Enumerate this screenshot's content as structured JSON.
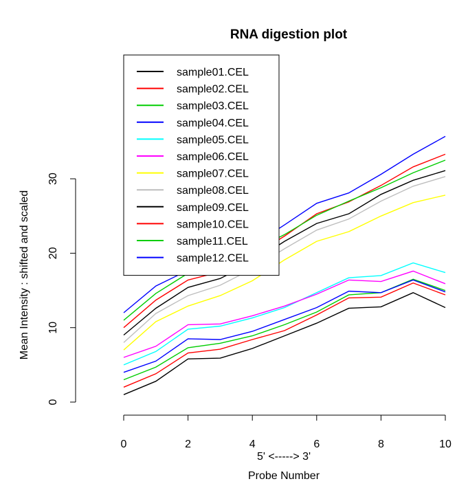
{
  "chart_data": {
    "type": "line",
    "title": "RNA digestion plot",
    "xlabel_line1": "5' <-----> 3'",
    "xlabel_line2": "Probe Number",
    "ylabel": "Mean Intensity : shifted and scaled",
    "x": [
      0,
      1,
      2,
      3,
      4,
      5,
      6,
      7,
      8,
      9,
      10
    ],
    "xticks": [
      0,
      2,
      4,
      6,
      8,
      10
    ],
    "yticks": [
      0,
      10,
      20,
      30
    ],
    "xlim": [
      0,
      10
    ],
    "ylim": [
      0,
      36
    ],
    "legend_position": "top-left",
    "grid": false,
    "series": [
      {
        "name": "sample01.CEL",
        "color": "#000000",
        "values": [
          1.0,
          2.8,
          5.8,
          5.9,
          7.2,
          8.9,
          10.6,
          12.6,
          12.8,
          14.7,
          12.7
        ]
      },
      {
        "name": "sample02.CEL",
        "color": "#ff0000",
        "values": [
          2.0,
          3.8,
          6.6,
          7.1,
          8.4,
          9.6,
          11.7,
          14.0,
          14.1,
          16.0,
          14.4
        ]
      },
      {
        "name": "sample03.CEL",
        "color": "#00cd00",
        "values": [
          3.0,
          4.7,
          7.3,
          7.9,
          8.9,
          10.4,
          12.1,
          14.4,
          14.7,
          16.5,
          15.0
        ]
      },
      {
        "name": "sample04.CEL",
        "color": "#0000ff",
        "values": [
          4.0,
          5.5,
          8.5,
          8.4,
          9.5,
          11.1,
          12.7,
          14.9,
          14.7,
          16.4,
          14.8
        ]
      },
      {
        "name": "sample05.CEL",
        "color": "#00ffff",
        "values": [
          5.0,
          6.8,
          9.8,
          10.2,
          11.3,
          12.7,
          14.7,
          16.7,
          17.0,
          18.7,
          17.4
        ]
      },
      {
        "name": "sample06.CEL",
        "color": "#ff00ff",
        "values": [
          6.0,
          7.5,
          10.4,
          10.5,
          11.6,
          12.9,
          14.5,
          16.4,
          16.2,
          17.6,
          15.9
        ]
      },
      {
        "name": "sample07.CEL",
        "color": "#ffff00",
        "values": [
          7.0,
          10.8,
          12.9,
          14.3,
          16.3,
          19.1,
          21.6,
          22.9,
          25.0,
          26.8,
          27.8
        ]
      },
      {
        "name": "sample08.CEL",
        "color": "#bebebe",
        "values": [
          8.0,
          11.9,
          14.3,
          15.7,
          17.9,
          20.6,
          23.1,
          24.6,
          27.0,
          29.0,
          30.3
        ]
      },
      {
        "name": "sample09.CEL",
        "color": "#000000",
        "values": [
          9.0,
          12.6,
          15.4,
          16.6,
          18.8,
          21.6,
          24.0,
          25.3,
          27.9,
          29.8,
          31.1
        ]
      },
      {
        "name": "sample10.CEL",
        "color": "#ff0000",
        "values": [
          10.0,
          13.7,
          16.4,
          17.5,
          19.6,
          22.3,
          25.3,
          26.9,
          29.1,
          31.6,
          33.3
        ]
      },
      {
        "name": "sample11.CEL",
        "color": "#00cd00",
        "values": [
          11.0,
          14.6,
          17.3,
          18.0,
          20.3,
          22.5,
          25.1,
          27.0,
          28.8,
          30.8,
          32.5
        ]
      },
      {
        "name": "sample12.CEL",
        "color": "#0000ff",
        "values": [
          12.0,
          15.6,
          17.7,
          18.9,
          21.0,
          23.8,
          26.7,
          28.1,
          30.6,
          33.3,
          35.7
        ]
      }
    ]
  }
}
